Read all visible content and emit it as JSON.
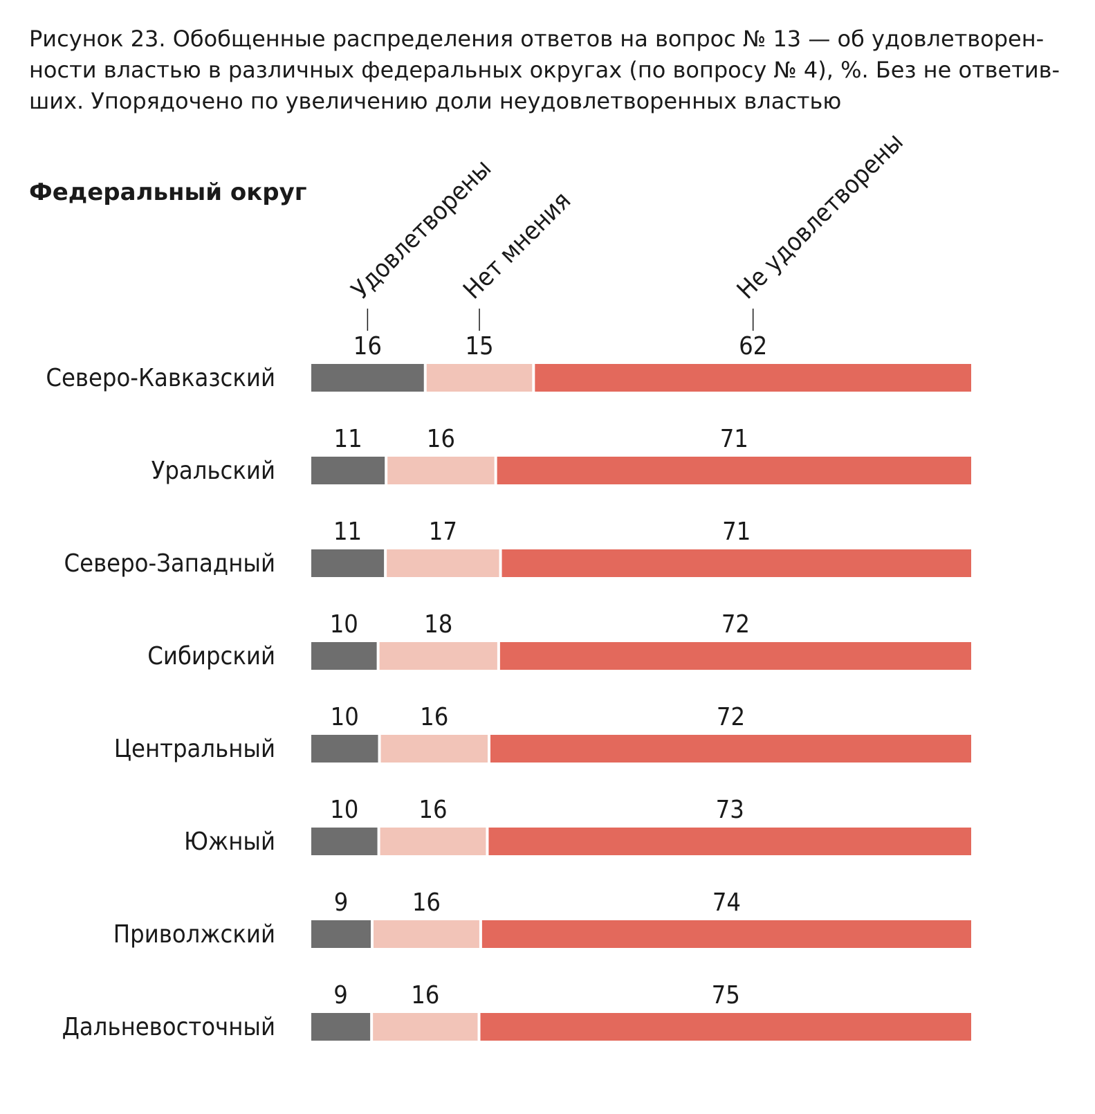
{
  "caption": {
    "lines": [
      "Рисунок 23. Обобщенные распределения ответов на вопрос № 13 — об удовлетворен-",
      "ности властью в различных федеральных округах (по вопросу № 4), %. Без не ответив-",
      "ших. Упорядочено по увеличению доли неудовлетворенных властью"
    ]
  },
  "chart_data": {
    "type": "bar",
    "orientation": "horizontal",
    "stacked": true,
    "y_axis_title": "Федеральный округ",
    "categories": [
      "Северо-Кавказский",
      "Уральский",
      "Северо-Западный",
      "Сибирский",
      "Центральный",
      "Южный",
      "Приволжский",
      "Дальневосточный"
    ],
    "series": [
      {
        "name": "Удовлетворены",
        "color": "#6e6e6e",
        "values": [
          16,
          11,
          11,
          10,
          10,
          10,
          9,
          9
        ]
      },
      {
        "name": "Нет мнения",
        "color": "#f2c4b8",
        "values": [
          15,
          16,
          17,
          18,
          16,
          16,
          16,
          16
        ]
      },
      {
        "name": "Не удовлетворены",
        "color": "#e3695c",
        "values": [
          62,
          71,
          71,
          72,
          72,
          73,
          74,
          75
        ]
      }
    ],
    "legend": "top, rotated labels above first bar",
    "unit": "%"
  }
}
